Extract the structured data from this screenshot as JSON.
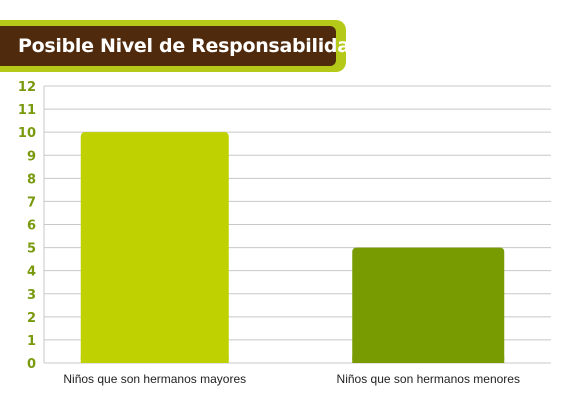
{
  "chart_data": {
    "type": "bar",
    "title": "Posible Nivel de Responsabilidad",
    "categories": [
      "Niños que son hermanos mayores",
      "Niños que son hermanos menores"
    ],
    "values": [
      10,
      5
    ],
    "ylim": [
      0,
      12
    ],
    "yticks": [
      0,
      1,
      2,
      3,
      4,
      5,
      6,
      7,
      8,
      9,
      10,
      11,
      12
    ],
    "grid": true,
    "colors": {
      "bars": [
        "#bfd100",
        "#779b00"
      ],
      "tick_labels": "#7a9a0e",
      "gridlines": "#c8c8c8",
      "title_bg": "#4f2a0d",
      "title_border": "#b5c918"
    }
  }
}
